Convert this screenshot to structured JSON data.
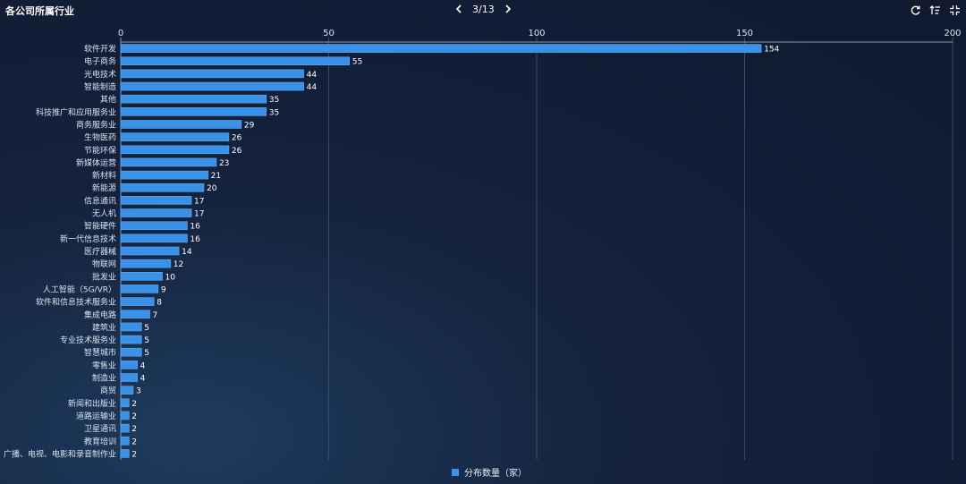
{
  "header": {
    "title": "各公司所属行业",
    "pager_text": "3/13"
  },
  "toolbar": {
    "refresh_icon": "refresh-icon",
    "sort_icon": "sort-icon",
    "collapse_icon": "collapse-icon"
  },
  "colors": {
    "bar": "#3a92e8",
    "bar_stroke": "#5aa9f5",
    "grid": "#3b4a66",
    "axis_text": "#d8e2ef"
  },
  "chart_data": {
    "type": "bar",
    "orientation": "horizontal",
    "categories": [
      "软件开发",
      "电子商务",
      "光电技术",
      "智能制造",
      "其他",
      "科技推广和应用服务业",
      "商务服务业",
      "生物医药",
      "节能环保",
      "新媒体运营",
      "新材料",
      "新能源",
      "信息通讯",
      "无人机",
      "智能硬件",
      "新一代信息技术",
      "医疗器械",
      "物联网",
      "批发业",
      "人工智能（5G/VR）",
      "软件和信息技术服务业",
      "集成电路",
      "建筑业",
      "专业技术服务业",
      "智慧城市",
      "零售业",
      "制造业",
      "商贸",
      "新闻和出版业",
      "道路运输业",
      "卫星通讯",
      "教育培训",
      "广播、电视、电影和录音制作业"
    ],
    "series": [
      {
        "name": "分布数量（家）",
        "values": [
          154,
          55,
          44,
          44,
          35,
          35,
          29,
          26,
          26,
          23,
          21,
          20,
          17,
          17,
          16,
          16,
          14,
          12,
          10,
          9,
          8,
          7,
          5,
          5,
          5,
          4,
          4,
          3,
          2,
          2,
          2,
          2,
          2
        ]
      }
    ],
    "xlim": [
      0,
      200
    ],
    "xticks": [
      0,
      50,
      100,
      150,
      200
    ],
    "grid": true,
    "legend_position": "bottom-center",
    "data_labels": true
  }
}
